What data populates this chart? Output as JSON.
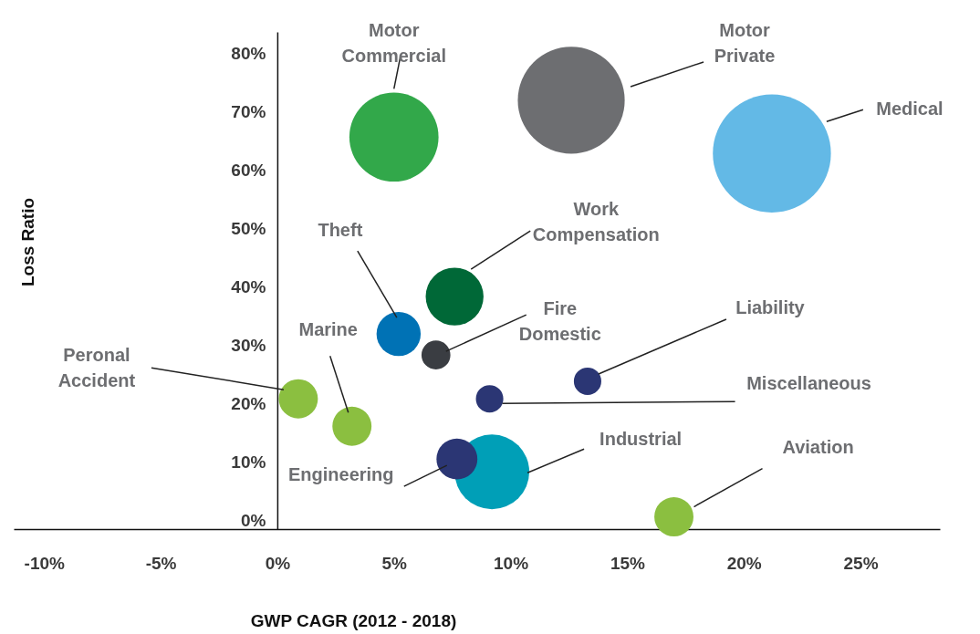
{
  "chart_data": {
    "type": "bubble",
    "xlabel": "GWP CAGR (2012 - 2018)",
    "ylabel": "Loss Ratio",
    "xlim": [
      -11.3,
      28.4
    ],
    "ylim": [
      -1.5,
      83.6
    ],
    "xticks": [
      {
        "value": -10,
        "label": "-10%"
      },
      {
        "value": -5,
        "label": "-5%"
      },
      {
        "value": 0,
        "label": "0%"
      },
      {
        "value": 5,
        "label": "5%"
      },
      {
        "value": 10,
        "label": "10%"
      },
      {
        "value": 15,
        "label": "15%"
      },
      {
        "value": 20,
        "label": "20%"
      },
      {
        "value": 25,
        "label": "25%"
      }
    ],
    "yticks": [
      {
        "value": 0,
        "label": "0%"
      },
      {
        "value": 10,
        "label": "10%"
      },
      {
        "value": 20,
        "label": "20%"
      },
      {
        "value": 30,
        "label": "30%"
      },
      {
        "value": 40,
        "label": "40%"
      },
      {
        "value": 50,
        "label": "50%"
      },
      {
        "value": 60,
        "label": "60%"
      },
      {
        "value": 70,
        "label": "70%"
      },
      {
        "value": 80,
        "label": "80%"
      }
    ],
    "grid": false,
    "legend": false,
    "series": [
      {
        "name": "Motor Commercial",
        "color": "#32a84a",
        "x": [
          5.0
        ],
        "values": [
          65.6
        ],
        "sizes": [
          0.57
        ]
      },
      {
        "name": "Motor Private",
        "color": "#6d6e71",
        "x": [
          12.6
        ],
        "values": [
          71.9
        ],
        "sizes": [
          0.82
        ]
      },
      {
        "name": "Medical",
        "color": "#63b9e6",
        "x": [
          21.2
        ],
        "values": [
          62.8
        ],
        "sizes": [
          1
        ]
      },
      {
        "name": "Work Compensation",
        "color": "#006837",
        "x": [
          7.6
        ],
        "values": [
          38.3
        ],
        "sizes": [
          0.24
        ]
      },
      {
        "name": "Theft",
        "color": "#0072b5",
        "x": [
          5.2
        ],
        "values": [
          31.9
        ],
        "sizes": [
          0.14
        ]
      },
      {
        "name": "Fire Domestic",
        "color": "#3a3d42",
        "x": [
          6.8
        ],
        "values": [
          28.3
        ],
        "sizes": [
          0.06
        ]
      },
      {
        "name": "Peronal Accident",
        "color": "#8bbf40",
        "x": [
          0.9
        ],
        "values": [
          20.8
        ],
        "sizes": [
          0.11
        ]
      },
      {
        "name": "Marine",
        "color": "#8bbf40",
        "x": [
          3.2
        ],
        "values": [
          16.1
        ],
        "sizes": [
          0.11
        ]
      },
      {
        "name": "Miscellaneous",
        "color": "#2b3674",
        "x": [
          9.1
        ],
        "values": [
          20.8
        ],
        "sizes": [
          0.054
        ]
      },
      {
        "name": "Liability",
        "color": "#2b3674",
        "x": [
          13.3
        ],
        "values": [
          23.8
        ],
        "sizes": [
          0.054
        ]
      },
      {
        "name": "Industrial",
        "color": "#009fb7",
        "x": [
          9.2
        ],
        "values": [
          8.3
        ],
        "sizes": [
          0.4
        ]
      },
      {
        "name": "Engineering",
        "color": "#2b3674",
        "x": [
          7.7
        ],
        "values": [
          10.5
        ],
        "sizes": [
          0.12
        ]
      },
      {
        "name": "Aviation",
        "color": "#8bbf40",
        "x": [
          17.0
        ],
        "values": [
          0.6
        ],
        "sizes": [
          0.11
        ]
      }
    ]
  }
}
